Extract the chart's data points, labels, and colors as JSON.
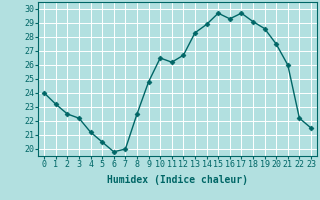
{
  "x": [
    0,
    1,
    2,
    3,
    4,
    5,
    6,
    7,
    8,
    9,
    10,
    11,
    12,
    13,
    14,
    15,
    16,
    17,
    18,
    19,
    20,
    21,
    22,
    23
  ],
  "y": [
    24.0,
    23.2,
    22.5,
    22.2,
    21.2,
    20.5,
    19.8,
    20.0,
    22.5,
    24.8,
    26.5,
    26.2,
    26.7,
    28.3,
    28.9,
    29.7,
    29.3,
    29.7,
    29.1,
    28.6,
    27.5,
    26.0,
    22.2,
    21.5
  ],
  "line_color": "#006666",
  "marker": "D",
  "marker_size": 2.5,
  "bg_color": "#b2e0e0",
  "grid_color": "#ffffff",
  "xlabel": "Humidex (Indice chaleur)",
  "ylabel_ticks": [
    20,
    21,
    22,
    23,
    24,
    25,
    26,
    27,
    28,
    29,
    30
  ],
  "xlim": [
    -0.5,
    23.5
  ],
  "ylim": [
    19.5,
    30.5
  ],
  "xticks": [
    0,
    1,
    2,
    3,
    4,
    5,
    6,
    7,
    8,
    9,
    10,
    11,
    12,
    13,
    14,
    15,
    16,
    17,
    18,
    19,
    20,
    21,
    22,
    23
  ],
  "xlabel_fontsize": 7,
  "tick_fontsize": 6,
  "line_width": 1.0
}
